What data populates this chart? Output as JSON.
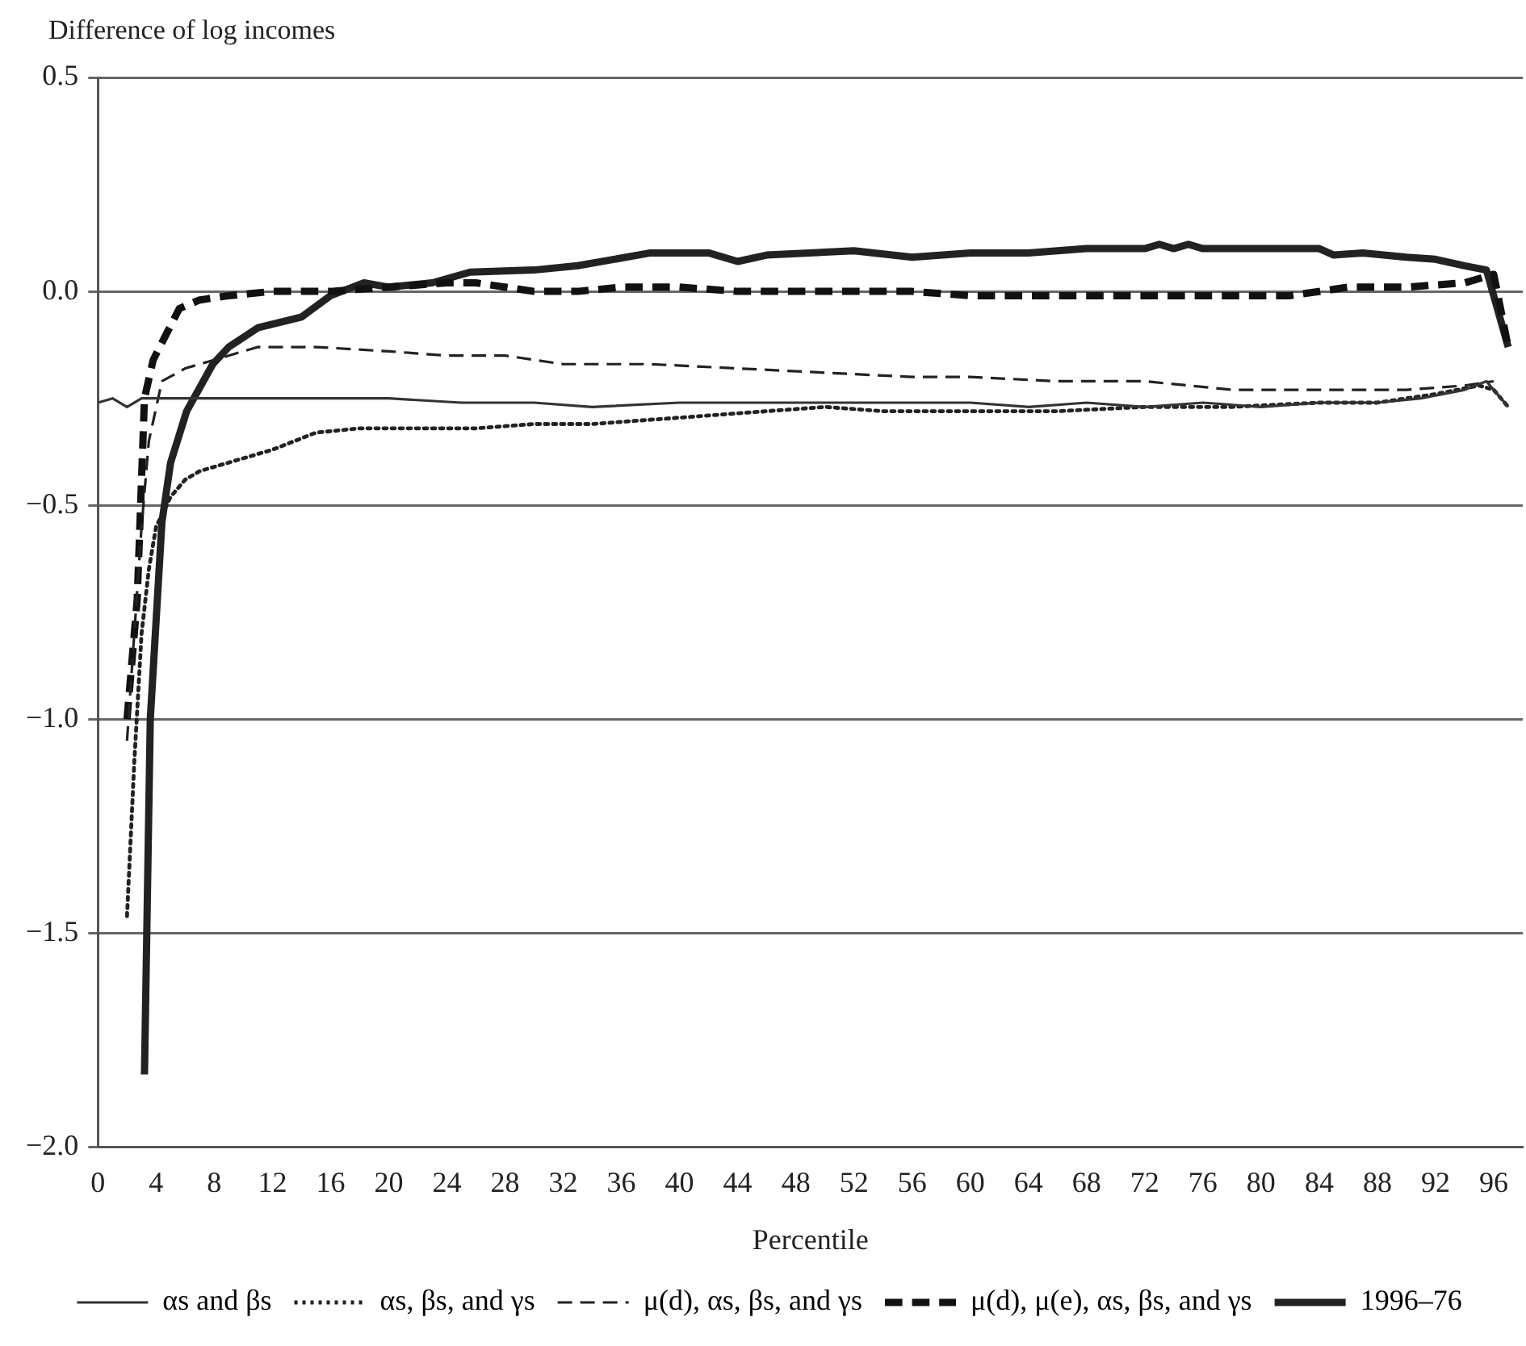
{
  "chart_data": {
    "type": "line",
    "ylabel": "Difference of log incomes",
    "xlabel": "Percentile",
    "xlim": [
      0,
      98
    ],
    "xticks": [
      0,
      4,
      8,
      12,
      16,
      20,
      24,
      28,
      32,
      36,
      40,
      44,
      48,
      52,
      56,
      60,
      64,
      68,
      72,
      76,
      80,
      84,
      88,
      92,
      96
    ],
    "ylim": [
      -2.0,
      0.5
    ],
    "yticks": [
      {
        "value": -2,
        "label": "−2.0"
      },
      {
        "value": -1.5,
        "label": "−1.5"
      },
      {
        "value": -1,
        "label": "−1.0"
      },
      {
        "value": -0.5,
        "label": "−0.5"
      },
      {
        "value": 0,
        "label": "0.0"
      },
      {
        "value": 0.5,
        "label": "0.5"
      }
    ],
    "grid": "y",
    "legend": "bottom",
    "marker": "none",
    "series": [
      {
        "name": "αs and βs",
        "color": "#333333",
        "line_style": "solid",
        "x": [
          0,
          1,
          2,
          3,
          5,
          8,
          12,
          16,
          20,
          25,
          30,
          34,
          40,
          45,
          50,
          56,
          60,
          64,
          68,
          72,
          76,
          80,
          84,
          88,
          91,
          94,
          95.5,
          97
        ],
        "values": [
          -0.26,
          -0.25,
          -0.27,
          -0.25,
          -0.25,
          -0.25,
          -0.25,
          -0.25,
          -0.25,
          -0.26,
          -0.26,
          -0.27,
          -0.26,
          -0.26,
          -0.26,
          -0.26,
          -0.26,
          -0.27,
          -0.26,
          -0.27,
          -0.26,
          -0.27,
          -0.26,
          -0.26,
          -0.25,
          -0.23,
          -0.21,
          -0.27
        ]
      },
      {
        "name": "αs, βs, and γs",
        "color": "#222222",
        "line_style": "dotted",
        "x": [
          2,
          2.5,
          3,
          3.5,
          4,
          5,
          6,
          7,
          9,
          12,
          15,
          18,
          22,
          26,
          30,
          34,
          38,
          42,
          46,
          50,
          54,
          60,
          66,
          72,
          78,
          84,
          88,
          92,
          95,
          96,
          97
        ],
        "values": [
          -1.46,
          -1.1,
          -0.8,
          -0.65,
          -0.55,
          -0.48,
          -0.44,
          -0.42,
          -0.4,
          -0.37,
          -0.33,
          -0.32,
          -0.32,
          -0.32,
          -0.31,
          -0.31,
          -0.3,
          -0.29,
          -0.28,
          -0.27,
          -0.28,
          -0.28,
          -0.28,
          -0.27,
          -0.27,
          -0.26,
          -0.26,
          -0.24,
          -0.22,
          -0.23,
          -0.27
        ]
      },
      {
        "name": "μ(d), αs, βs, and γs",
        "color": "#222222",
        "line_style": "dashed",
        "x": [
          2,
          2.5,
          3,
          3.5,
          4.4,
          6,
          8,
          11,
          15,
          20,
          24,
          28,
          32,
          38,
          44,
          50,
          56,
          60,
          66,
          72,
          78,
          84,
          90,
          94,
          96
        ],
        "values": [
          -1.05,
          -0.8,
          -0.55,
          -0.35,
          -0.21,
          -0.18,
          -0.16,
          -0.13,
          -0.13,
          -0.14,
          -0.15,
          -0.15,
          -0.17,
          -0.17,
          -0.18,
          -0.19,
          -0.2,
          -0.2,
          -0.21,
          -0.21,
          -0.23,
          -0.23,
          -0.23,
          -0.22,
          -0.21
        ]
      },
      {
        "name": "μ(d), μ(e), αs, βs, and γs",
        "color": "#111111",
        "line_style": "dashed",
        "x": [
          2,
          2.7,
          3.2,
          3.8,
          5.6,
          7,
          9,
          12,
          16,
          20,
          24,
          26,
          30,
          33,
          36,
          40,
          44,
          50,
          56,
          60,
          66,
          72,
          78,
          82,
          86,
          90,
          94,
          96,
          97
        ],
        "values": [
          -1.0,
          -0.72,
          -0.25,
          -0.16,
          -0.04,
          -0.02,
          -0.01,
          0.0,
          0.0,
          0.01,
          0.02,
          0.02,
          0.0,
          0.0,
          0.01,
          0.01,
          0.0,
          0.0,
          0.0,
          -0.01,
          -0.01,
          -0.01,
          -0.01,
          -0.01,
          0.01,
          0.01,
          0.02,
          0.04,
          -0.13
        ]
      },
      {
        "name": "1996–76",
        "color": "#222222",
        "line_style": "solid",
        "x": [
          3.2,
          3.6,
          4.4,
          5,
          6.1,
          7.9,
          9,
          11,
          14,
          16,
          18.3,
          20,
          23,
          25.6,
          30,
          33,
          38,
          42,
          44,
          46,
          52,
          56,
          60,
          64,
          68,
          72,
          73,
          74,
          75,
          76,
          80,
          84,
          85,
          87,
          90,
          92,
          94,
          95.5,
          97
        ],
        "values": [
          -1.83,
          -1.0,
          -0.54,
          -0.4,
          -0.28,
          -0.17,
          -0.13,
          -0.085,
          -0.06,
          -0.01,
          0.02,
          0.01,
          0.02,
          0.045,
          0.05,
          0.06,
          0.09,
          0.09,
          0.07,
          0.085,
          0.095,
          0.08,
          0.09,
          0.09,
          0.1,
          0.1,
          0.11,
          0.1,
          0.11,
          0.1,
          0.1,
          0.1,
          0.085,
          0.09,
          0.08,
          0.075,
          0.06,
          0.05,
          -0.13
        ]
      }
    ]
  }
}
